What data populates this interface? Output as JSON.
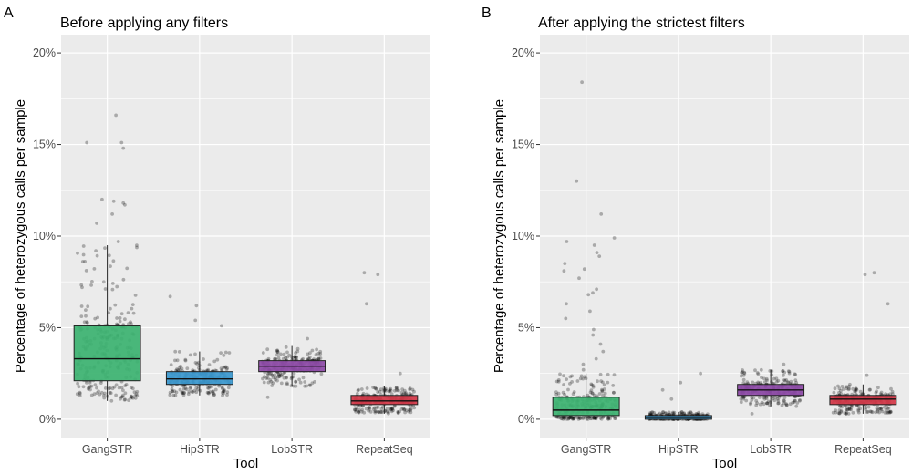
{
  "figure": {
    "panels": [
      {
        "letter": "A",
        "title": "Before applying any filters"
      },
      {
        "letter": "B",
        "title": "After applying the strictest filters"
      }
    ]
  },
  "chart_data": [
    {
      "type": "box",
      "title": "Before applying any filters",
      "xlabel": "Tool",
      "ylabel": "Percentage of heterozygous calls per sample",
      "ylim": [
        -0.01,
        0.21
      ],
      "yticks": [
        0,
        0.05,
        0.1,
        0.15,
        0.2
      ],
      "ytick_labels": [
        "0%",
        "5%",
        "10%",
        "15%",
        "20%"
      ],
      "grid": true,
      "categories": [
        "GangSTR",
        "HipSTR",
        "LobSTR",
        "RepeatSeq"
      ],
      "colors": [
        "#3cb371",
        "#3a98cf",
        "#8e4aa8",
        "#d33848"
      ],
      "boxes": [
        {
          "q1": 0.021,
          "median": 0.033,
          "q3": 0.051,
          "whisker_low": 0.01,
          "whisker_high": 0.095
        },
        {
          "q1": 0.019,
          "median": 0.022,
          "q3": 0.026,
          "whisker_low": 0.013,
          "whisker_high": 0.037
        },
        {
          "q1": 0.026,
          "median": 0.029,
          "q3": 0.032,
          "whisker_low": 0.018,
          "whisker_high": 0.04
        },
        {
          "q1": 0.008,
          "median": 0.01,
          "q3": 0.013,
          "whisker_low": 0.003,
          "whisker_high": 0.018
        }
      ],
      "outliers": [
        [
          0.166,
          0.151,
          0.151,
          0.148,
          0.12,
          0.119,
          0.118,
          0.117,
          0.112,
          0.107,
          0.097
        ],
        [
          0.067,
          0.062,
          0.054,
          0.051
        ],
        [
          0.044,
          0.012
        ],
        [
          0.08,
          0.079,
          0.063,
          0.025
        ]
      ]
    },
    {
      "type": "box",
      "title": "After applying the strictest filters",
      "xlabel": "Tool",
      "ylabel": "Percentage of heterozygous calls per sample",
      "ylim": [
        -0.01,
        0.21
      ],
      "yticks": [
        0,
        0.05,
        0.1,
        0.15,
        0.2
      ],
      "ytick_labels": [
        "0%",
        "5%",
        "10%",
        "15%",
        "20%"
      ],
      "grid": true,
      "categories": [
        "GangSTR",
        "HipSTR",
        "LobSTR",
        "RepeatSeq"
      ],
      "colors": [
        "#3cb371",
        "#3a98cf",
        "#8e4aa8",
        "#d33848"
      ],
      "boxes": [
        {
          "q1": 0.002,
          "median": 0.005,
          "q3": 0.012,
          "whisker_low": 0.0,
          "whisker_high": 0.025
        },
        {
          "q1": 0.0,
          "median": 0.001,
          "q3": 0.002,
          "whisker_low": 0.0,
          "whisker_high": 0.004
        },
        {
          "q1": 0.013,
          "median": 0.016,
          "q3": 0.019,
          "whisker_low": 0.007,
          "whisker_high": 0.027
        },
        {
          "q1": 0.008,
          "median": 0.011,
          "q3": 0.013,
          "whisker_low": 0.003,
          "whisker_high": 0.019
        }
      ],
      "outliers": [
        [
          0.184,
          0.13,
          0.112,
          0.099,
          0.097,
          0.095,
          0.091,
          0.089,
          0.085,
          0.082,
          0.081,
          0.077,
          0.071,
          0.069,
          0.068,
          0.063,
          0.059,
          0.055,
          0.049,
          0.046,
          0.041,
          0.037,
          0.033,
          0.03,
          0.027
        ],
        [
          0.025,
          0.02,
          0.016,
          0.011
        ],
        [
          0.03,
          0.003
        ],
        [
          0.08,
          0.079,
          0.063,
          0.024
        ]
      ]
    }
  ]
}
